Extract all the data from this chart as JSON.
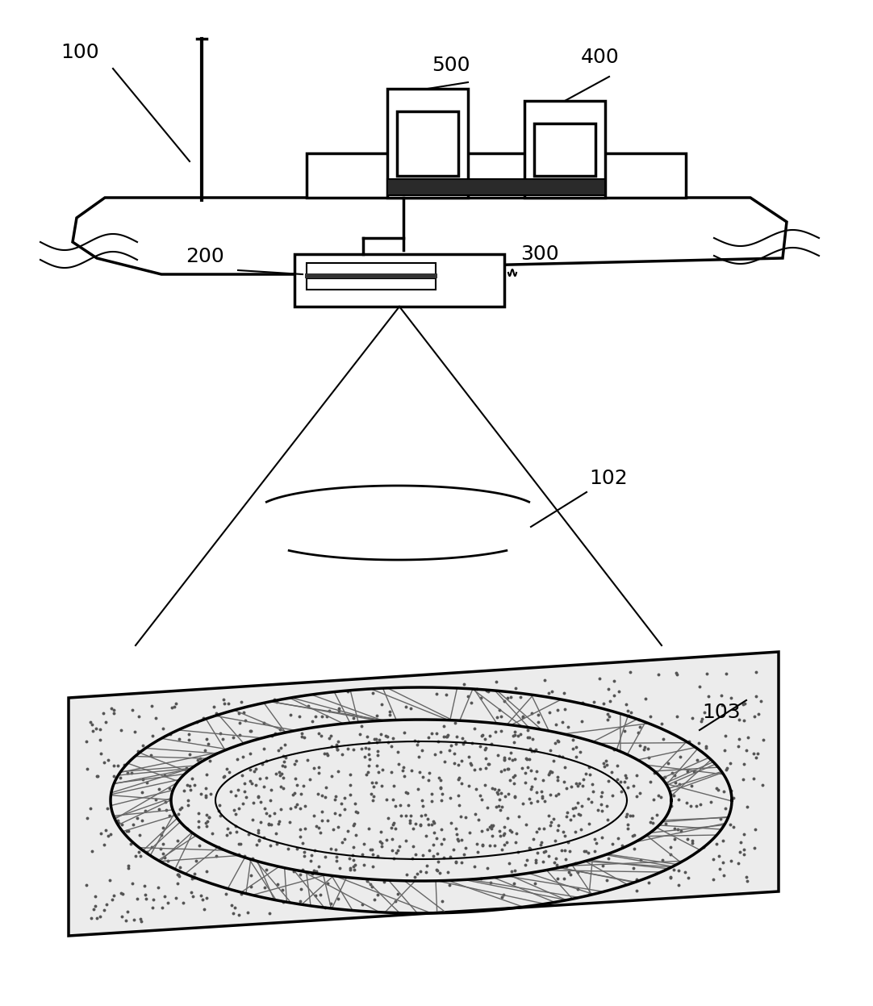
{
  "bg_color": "#ffffff",
  "line_color": "#000000",
  "label_100": "100",
  "label_200": "200",
  "label_300": "300",
  "label_400": "400",
  "label_500": "500",
  "label_102": "102",
  "label_103": "103",
  "lw_main": 2.5,
  "lw_thin": 1.5,
  "font_size_label": 18
}
